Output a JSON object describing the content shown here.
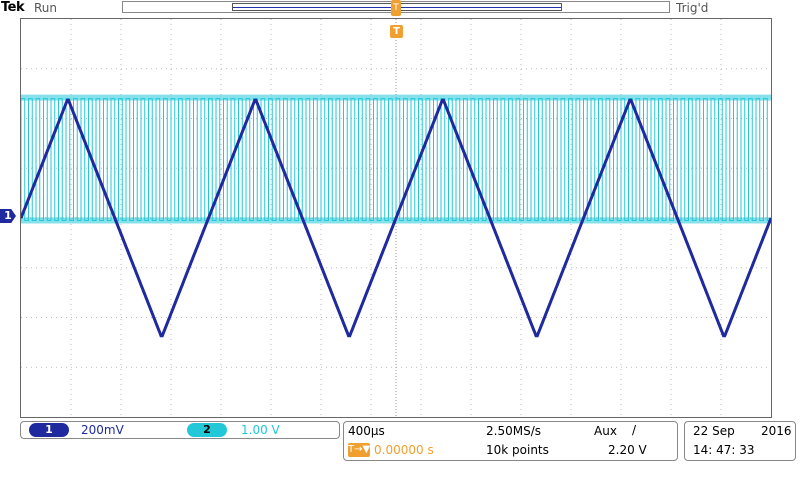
{
  "header": {
    "brand": "Tek",
    "run_state": "Run",
    "trigger_state": "Trig'd",
    "trigger_position_label": "T",
    "trigger_marker_label": "T"
  },
  "channels": {
    "ch1": {
      "label": "1",
      "scale": "200mV",
      "color": "#1e2a9e"
    },
    "ch2": {
      "label": "2",
      "scale": "1.00 V",
      "color": "#22c8d8"
    }
  },
  "timebase": {
    "scale": "400µs",
    "sample_rate": "2.50MS/s",
    "record_length": "10k points",
    "delay_icon": "T→▼",
    "delay": "0.00000 s"
  },
  "trigger": {
    "source": "Aux",
    "slope": "/",
    "level": "2.20 V"
  },
  "datetime": {
    "date": "22 Sep",
    "year": "2016",
    "time": "14: 47: 33"
  },
  "chart_data": {
    "type": "line",
    "series": [
      {
        "name": "",
        "channel": "1",
        "shape": "triangle",
        "color": "#1e2a9e",
        "period_divisions": 3.75,
        "peak_divisions": 2.4,
        "trough_divisions": -2.4,
        "values_start_divisions": 0,
        "first_peak_at_division": 0.9375
      },
      {
        "name": "",
        "channel": "2",
        "shape": "square",
        "color": "#22c8d8",
        "high_divisions": 2.4,
        "low_divisions": -0.05,
        "cycles_across_screen": 100
      }
    ],
    "grid": true,
    "x_divisions": 15,
    "y_divisions": 8
  }
}
